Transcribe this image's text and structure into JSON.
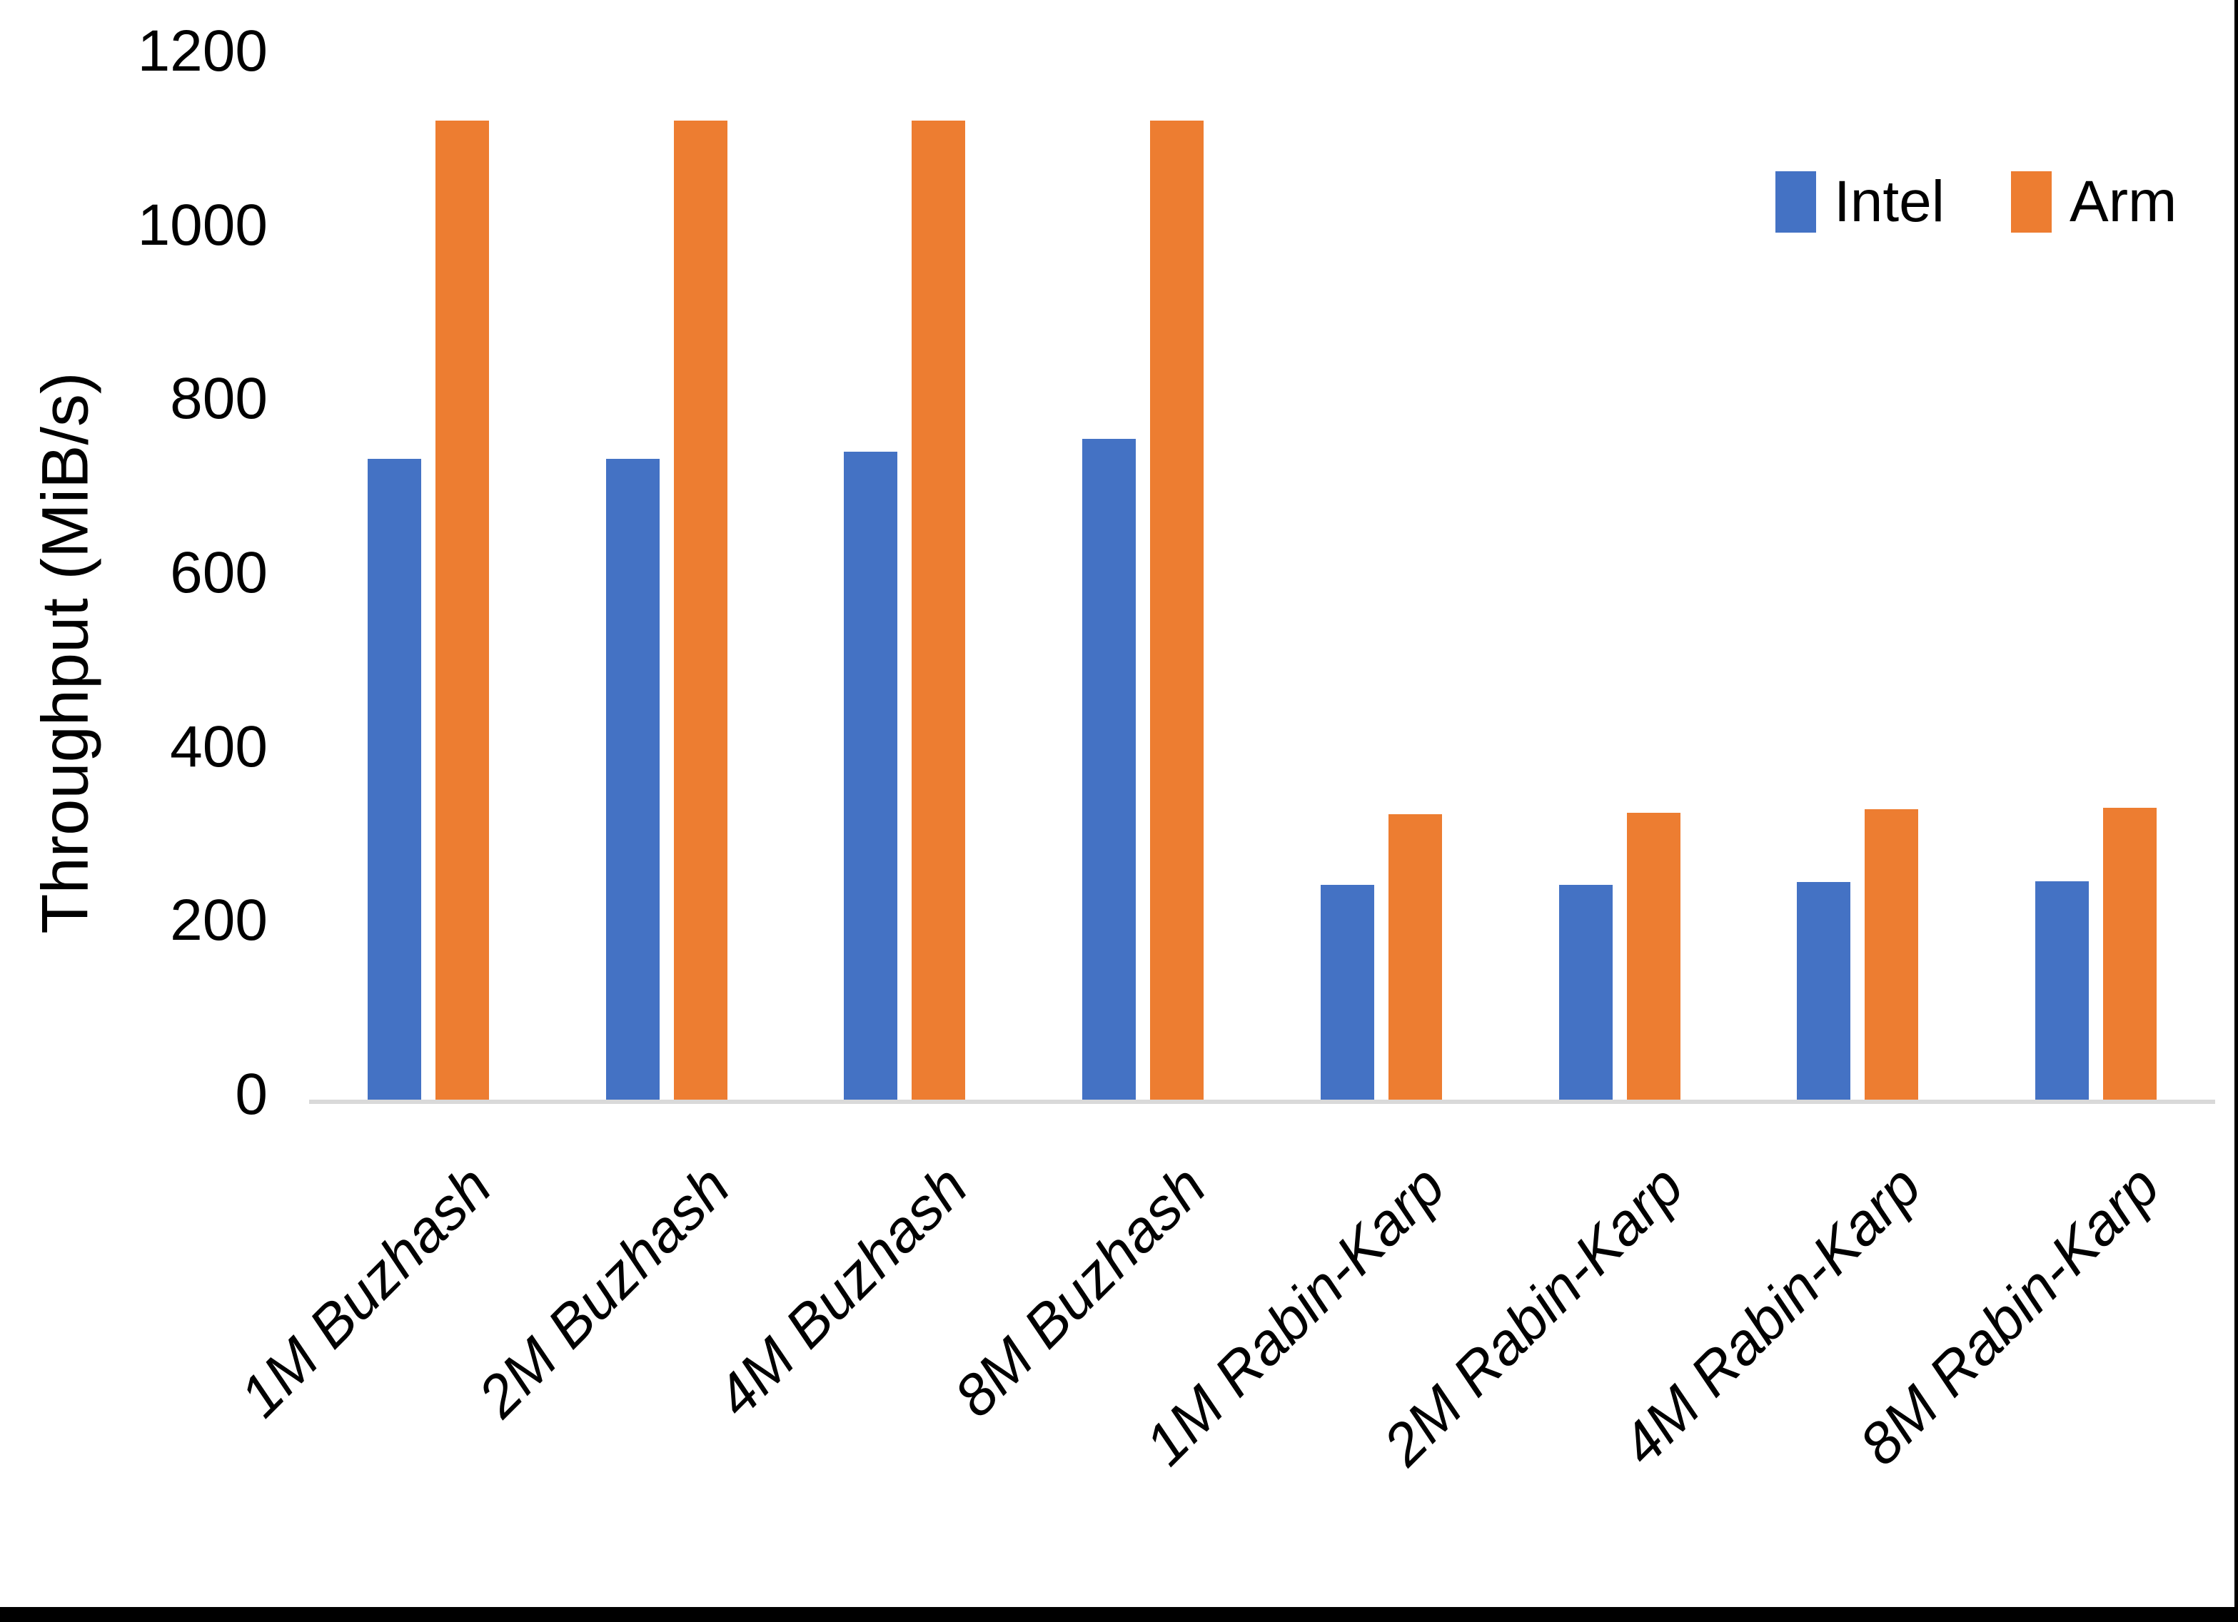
{
  "chart_data": {
    "type": "bar",
    "title": "",
    "xlabel": "",
    "ylabel": "Throughput (MiB/s)",
    "ylim": [
      0,
      1200
    ],
    "yticks": [
      0,
      200,
      400,
      600,
      800,
      1000,
      1200
    ],
    "grid": false,
    "legend_position": "top-right",
    "axis_line_color": "#D9D9D9",
    "categories": [
      "1M Buzhash",
      "2M Buzhash",
      "4M Buzhash",
      "8M Buzhash",
      "1M Rabin-Karp",
      "2M Rabin-Karp",
      "4M Rabin-Karp",
      "8M Rabin-Karp"
    ],
    "series": [
      {
        "name": "Intel",
        "color": "#4472C4",
        "values": [
          737,
          737,
          745,
          760,
          247,
          247,
          250,
          251
        ]
      },
      {
        "name": "Arm",
        "color": "#ED7D31",
        "values": [
          1126,
          1126,
          1126,
          1126,
          328,
          330,
          334,
          336
        ]
      }
    ]
  },
  "frame": {
    "bottom_bar_color": "#000000",
    "right_edge_color": "#000000"
  }
}
